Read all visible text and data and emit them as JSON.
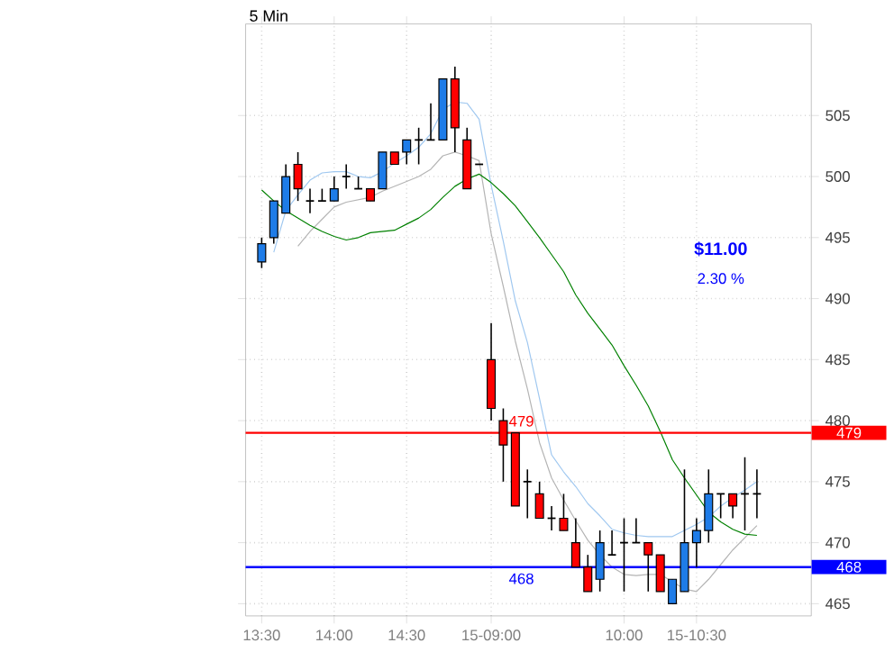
{
  "chart_data": {
    "type": "candlestick",
    "title": "5 Min",
    "categories": [
      "13:30",
      null,
      null,
      null,
      null,
      null,
      "14:00",
      null,
      null,
      null,
      null,
      null,
      "14:30",
      null,
      null,
      null,
      null,
      null,
      null,
      "15-09:00",
      null,
      null,
      null,
      null,
      null,
      null,
      null,
      null,
      null,
      null,
      "10:00",
      null,
      null,
      null,
      null,
      null,
      "15-10:30",
      null,
      null,
      null,
      null,
      null
    ],
    "ohlc": [
      [
        493,
        495,
        492.5,
        494.5
      ],
      [
        495,
        498,
        494.5,
        498
      ],
      [
        497,
        501,
        497,
        500
      ],
      [
        501,
        502,
        498,
        499
      ],
      [
        498,
        499,
        497,
        498
      ],
      [
        498,
        499,
        498,
        498
      ],
      [
        498,
        500,
        498,
        499
      ],
      [
        500,
        501,
        499,
        500
      ],
      [
        499,
        500,
        499,
        499
      ],
      [
        499,
        499,
        498,
        498
      ],
      [
        499,
        502,
        499,
        502
      ],
      [
        502,
        502,
        501,
        501
      ],
      [
        502,
        503,
        501,
        503
      ],
      [
        503,
        504,
        501,
        503
      ],
      [
        503,
        506,
        503,
        503
      ],
      [
        503,
        508,
        503,
        508
      ],
      [
        508,
        509,
        502,
        504
      ],
      [
        503,
        504,
        499,
        499
      ],
      [
        501,
        501,
        501,
        501
      ],
      [
        485,
        488,
        480,
        481
      ],
      [
        480,
        481,
        475,
        478
      ],
      [
        479,
        479,
        473,
        473
      ],
      [
        475,
        476,
        472,
        475
      ],
      [
        474,
        475,
        472,
        472
      ],
      [
        472,
        473,
        471,
        472
      ],
      [
        472,
        474,
        471,
        471
      ],
      [
        470,
        472,
        468,
        468
      ],
      [
        468,
        469,
        466,
        466
      ],
      [
        467,
        471,
        466,
        470
      ],
      [
        469,
        471,
        469,
        469
      ],
      [
        470,
        472,
        466,
        470
      ],
      [
        470,
        472,
        470,
        470
      ],
      [
        470,
        470,
        466,
        469
      ],
      [
        469,
        469,
        466,
        466
      ],
      [
        465,
        467,
        465,
        467
      ],
      [
        466,
        476,
        466,
        470
      ],
      [
        470,
        472,
        468,
        471
      ],
      [
        471,
        476,
        470,
        474
      ],
      [
        474,
        474,
        472,
        474
      ],
      [
        474,
        474,
        472,
        473
      ],
      [
        474,
        477,
        471,
        474
      ],
      [
        474,
        476,
        472,
        474
      ]
    ],
    "colors": [
      "#1e7ce8",
      "#1e7ce8",
      "#1e7ce8",
      "#ff0000",
      "#000000",
      "#000000",
      "#1e7ce8",
      "#000000",
      "#000000",
      "#ff0000",
      "#1e7ce8",
      "#ff0000",
      "#1e7ce8",
      "#000000",
      "#000000",
      "#1e7ce8",
      "#ff0000",
      "#ff0000",
      "#000000",
      "#ff0000",
      "#ff0000",
      "#ff0000",
      "#000000",
      "#ff0000",
      "#000000",
      "#ff0000",
      "#ff0000",
      "#ff0000",
      "#1e7ce8",
      "#000000",
      "#000000",
      "#000000",
      "#ff0000",
      "#ff0000",
      "#1e7ce8",
      "#1e7ce8",
      "#1e7ce8",
      "#1e7ce8",
      "#000000",
      "#ff0000",
      "#000000",
      "#000000"
    ],
    "series": [
      {
        "type": "line",
        "color": "#a0c8f0",
        "values": [
          null,
          493.8,
          497.2,
          498.5,
          499.7,
          500.3,
          500.4,
          500.4,
          500,
          499.9,
          500.4,
          501.1,
          501.7,
          502.4,
          503.5,
          505.5,
          506.1,
          506,
          504.7,
          499.3,
          494.7,
          489.8,
          486.4,
          481.8,
          477.2,
          475.8,
          474.6,
          473.2,
          472.2,
          471.1,
          470.8,
          470.6,
          470.5,
          470.5,
          470.5,
          471,
          471.5,
          472.1,
          473,
          473.7,
          474.3,
          475
        ]
      },
      {
        "type": "line",
        "color": "#b4b4b4",
        "values": [
          null,
          null,
          null,
          494.3,
          495.5,
          496.5,
          497.5,
          497.9,
          498.1,
          498.3,
          498.8,
          499.2,
          499.6,
          500,
          500.6,
          501.7,
          502,
          501.7,
          501.3,
          495.3,
          491,
          486.5,
          482.6,
          478.2,
          475.3,
          473.5,
          471.8,
          470.2,
          469,
          468,
          467.4,
          467.3,
          467.4,
          467.4,
          466.8,
          466.2,
          466,
          467,
          468.2,
          469.4,
          470.4,
          471.4
        ]
      },
      {
        "type": "line",
        "color": "#008000",
        "values": [
          498.9,
          498,
          497.2,
          496.6,
          496,
          495.5,
          495.1,
          494.8,
          495,
          495.4,
          495.5,
          495.6,
          496.1,
          496.6,
          497.3,
          498.3,
          499.2,
          499.8,
          500.2,
          499.5,
          498.6,
          497.6,
          496.3,
          495,
          493.6,
          492.2,
          490.3,
          488.8,
          487.5,
          486.2,
          484.5,
          482.9,
          481.2,
          479.1,
          476.8,
          475.3,
          473.9,
          472.5,
          471.7,
          471.1,
          470.7,
          470.6
        ]
      }
    ],
    "ylim": [
      464,
      512.5
    ],
    "yticks": [
      465,
      470,
      475,
      480,
      485,
      490,
      495,
      500,
      505
    ],
    "grid": true,
    "ref_lines": [
      {
        "axis": "y",
        "value": 479,
        "label": "479",
        "color": "#ff0000"
      },
      {
        "axis": "y",
        "value": 468,
        "label": "468",
        "color": "#0000ff"
      }
    ],
    "annotations": [
      "$11.00",
      "2.30 %"
    ]
  }
}
